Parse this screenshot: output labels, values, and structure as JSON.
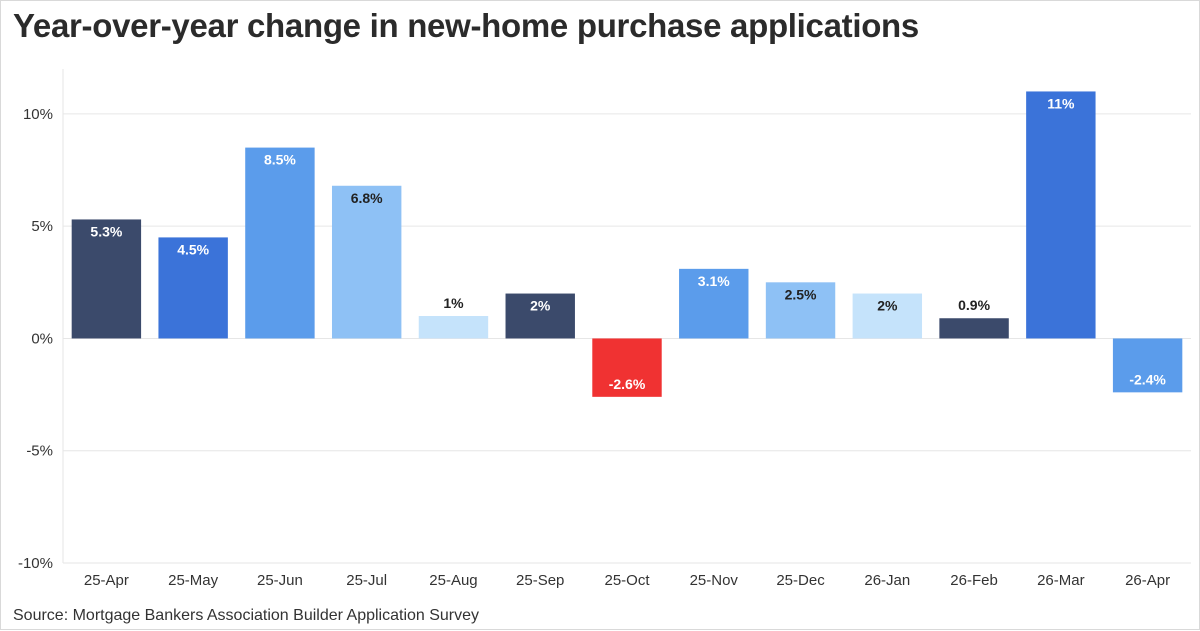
{
  "title": "Year-over-year change in new-home purchase applications",
  "source": "Source: Mortgage Bankers Association Builder Application Survey",
  "chart_data": {
    "type": "bar",
    "title": "Year-over-year change in new-home purchase applications",
    "xlabel": "",
    "ylabel": "",
    "ylim": [
      -10,
      12
    ],
    "grid": true,
    "y_ticks": [
      {
        "value": 10,
        "label": "10%"
      },
      {
        "value": 5,
        "label": "5%"
      },
      {
        "value": 0,
        "label": "0%"
      },
      {
        "value": -5,
        "label": "-5%"
      },
      {
        "value": -10,
        "label": "-10%"
      }
    ],
    "categories": [
      "25-Apr",
      "25-May",
      "25-Jun",
      "25-Jul",
      "25-Aug",
      "25-Sep",
      "25-Oct",
      "25-Nov",
      "25-Dec",
      "26-Jan",
      "26-Feb",
      "26-Mar",
      "26-Apr"
    ],
    "values": [
      5.3,
      4.5,
      8.5,
      6.8,
      1,
      2,
      -2.6,
      3.1,
      2.5,
      2,
      0.9,
      11,
      -2.4
    ],
    "data_labels": [
      "5.3%",
      "4.5%",
      "8.5%",
      "6.8%",
      "1%",
      "2%",
      "-2.6%",
      "3.1%",
      "2.5%",
      "2%",
      "0.9%",
      "11%",
      "-2.4%"
    ],
    "colors": [
      "#3b4a6b",
      "#3b73d9",
      "#5b9ceb",
      "#8ec1f5",
      "#c5e3fb",
      "#3b4a6b",
      "#f03232",
      "#5b9ceb",
      "#8ec1f5",
      "#c5e3fb",
      "#3b4a6b",
      "#3b73d9",
      "#5b9ceb"
    ],
    "label_colors": [
      "#ffffff",
      "#ffffff",
      "#ffffff",
      "#222222",
      "#222222",
      "#ffffff",
      "#ffffff",
      "#ffffff",
      "#222222",
      "#222222",
      "#222222",
      "#ffffff",
      "#ffffff"
    ]
  }
}
